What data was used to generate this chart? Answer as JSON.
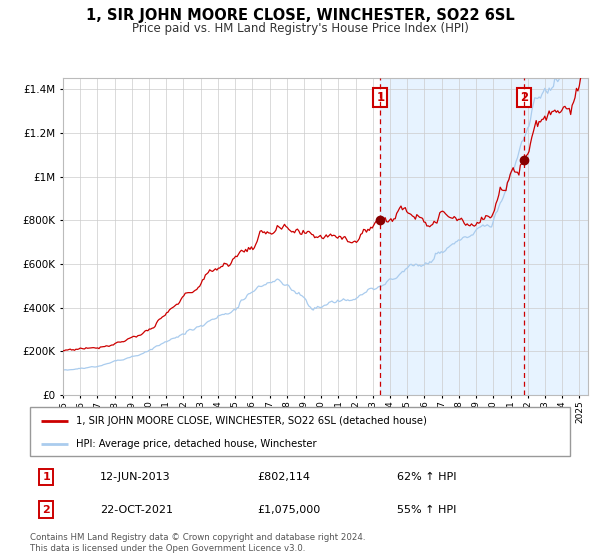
{
  "title": "1, SIR JOHN MOORE CLOSE, WINCHESTER, SO22 6SL",
  "subtitle": "Price paid vs. HM Land Registry's House Price Index (HPI)",
  "legend_property": "1, SIR JOHN MOORE CLOSE, WINCHESTER, SO22 6SL (detached house)",
  "legend_hpi": "HPI: Average price, detached house, Winchester",
  "sale1_date": "12-JUN-2013",
  "sale1_price": 802114,
  "sale1_pct": "62% ↑ HPI",
  "sale2_date": "22-OCT-2021",
  "sale2_price": 1075000,
  "sale2_pct": "55% ↑ HPI",
  "footer": "Contains HM Land Registry data © Crown copyright and database right 2024.\nThis data is licensed under the Open Government Licence v3.0.",
  "xmin": 1995.0,
  "xmax": 2025.5,
  "ymin": 0,
  "ymax": 1450000,
  "sale1_x": 2013.44,
  "sale2_x": 2021.8,
  "property_color": "#cc0000",
  "hpi_color": "#aaccee",
  "shade_color": "#ddeeff",
  "plot_bg": "#ffffff",
  "grid_color": "#cccccc"
}
